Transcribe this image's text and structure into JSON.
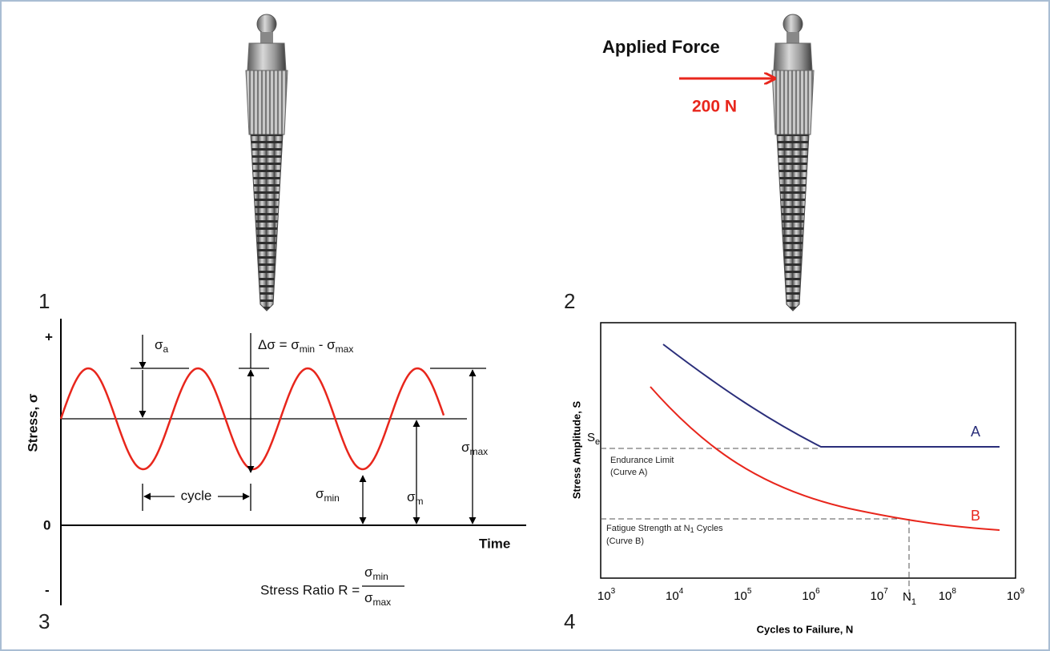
{
  "panels": {
    "p1": {
      "number": "1"
    },
    "p2": {
      "number": "2",
      "force_title": "Applied Force",
      "force_value": "200 N"
    },
    "p3": {
      "number": "3",
      "y_plus": "+",
      "y_zero": "0",
      "y_minus": "-",
      "y_label": "Stress, σ",
      "x_label": "Time",
      "sigma_a": {
        "base": "σ",
        "sub": "a"
      },
      "delta": {
        "lead": "Δσ = σ",
        "sub1": "min",
        "mid": " - σ",
        "sub2": "max"
      },
      "sigma_max": {
        "base": "σ",
        "sub": "max"
      },
      "sigma_m": {
        "base": "σ",
        "sub": "m"
      },
      "sigma_min": {
        "base": "σ",
        "sub": "min"
      },
      "cycle": "cycle",
      "ratio": {
        "lead": "Stress Ratio  R =",
        "num_base": "σ",
        "num_sub": "min",
        "den_base": "σ",
        "den_sub": "max"
      }
    },
    "p4": {
      "number": "4",
      "y_label": "Stress Amplitude, S",
      "x_label": "Cycles to Failure, N",
      "se": {
        "base": "S",
        "sub": "e"
      },
      "endurance": [
        "Endurance Limit",
        "(Curve A)"
      ],
      "fatigue": {
        "lead": "Fatigue Strength at N",
        "sub": "1",
        "tail": " Cycles"
      },
      "fatigue_note": "(Curve B)",
      "curve_a": "A",
      "curve_b": "B",
      "n1": {
        "base": "N",
        "sub": "1"
      },
      "x_ticks": [
        {
          "base": "10",
          "exp": "3"
        },
        {
          "base": "10",
          "exp": "4"
        },
        {
          "base": "10",
          "exp": "5"
        },
        {
          "base": "10",
          "exp": "6"
        },
        {
          "base": "10",
          "exp": "7"
        },
        {
          "base": "10",
          "exp": "8"
        },
        {
          "base": "10",
          "exp": "9"
        }
      ]
    }
  }
}
